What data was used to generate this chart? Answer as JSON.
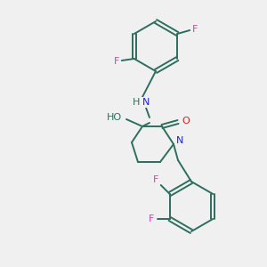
{
  "background_color": "#f0f0f0",
  "bond_color": "#2d6e5e",
  "atom_colors": {
    "F": "#cc44aa",
    "N": "#2222cc",
    "O": "#cc2222",
    "H": "#2d6e5e",
    "C": "#2d6e5e"
  },
  "title": ""
}
